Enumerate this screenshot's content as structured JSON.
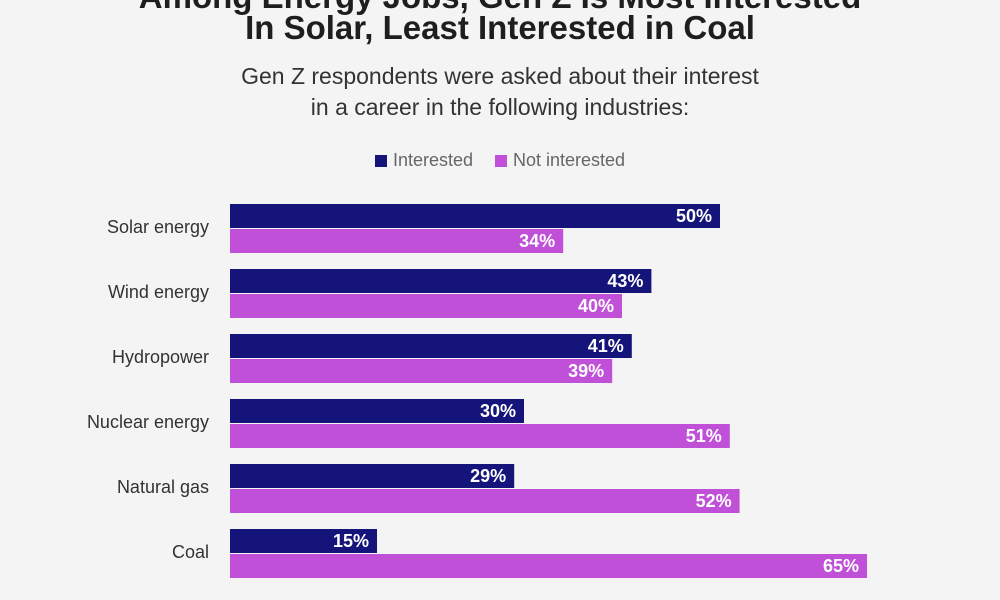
{
  "title_line1": "Among Energy Jobs, Gen Z Is Most Interested",
  "title_line2": "In Solar, Least Interested in Coal",
  "subtitle_line1": "Gen Z respondents were asked about their interest",
  "subtitle_line2": "in a career in the following industries:",
  "colors": {
    "interested": "#15147a",
    "not_interested": "#c050d8"
  },
  "chart_data": {
    "type": "bar",
    "orientation": "horizontal",
    "categories": [
      "Solar energy",
      "Wind energy",
      "Hydropower",
      "Nuclear energy",
      "Natural gas",
      "Coal"
    ],
    "series": [
      {
        "name": "Interested",
        "values": [
          50,
          43,
          41,
          30,
          29,
          15
        ]
      },
      {
        "name": "Not interested",
        "values": [
          34,
          40,
          39,
          51,
          52,
          65
        ]
      }
    ],
    "value_suffix": "%",
    "xlim": [
      0,
      65
    ],
    "legend": "top-center",
    "grid": false
  }
}
